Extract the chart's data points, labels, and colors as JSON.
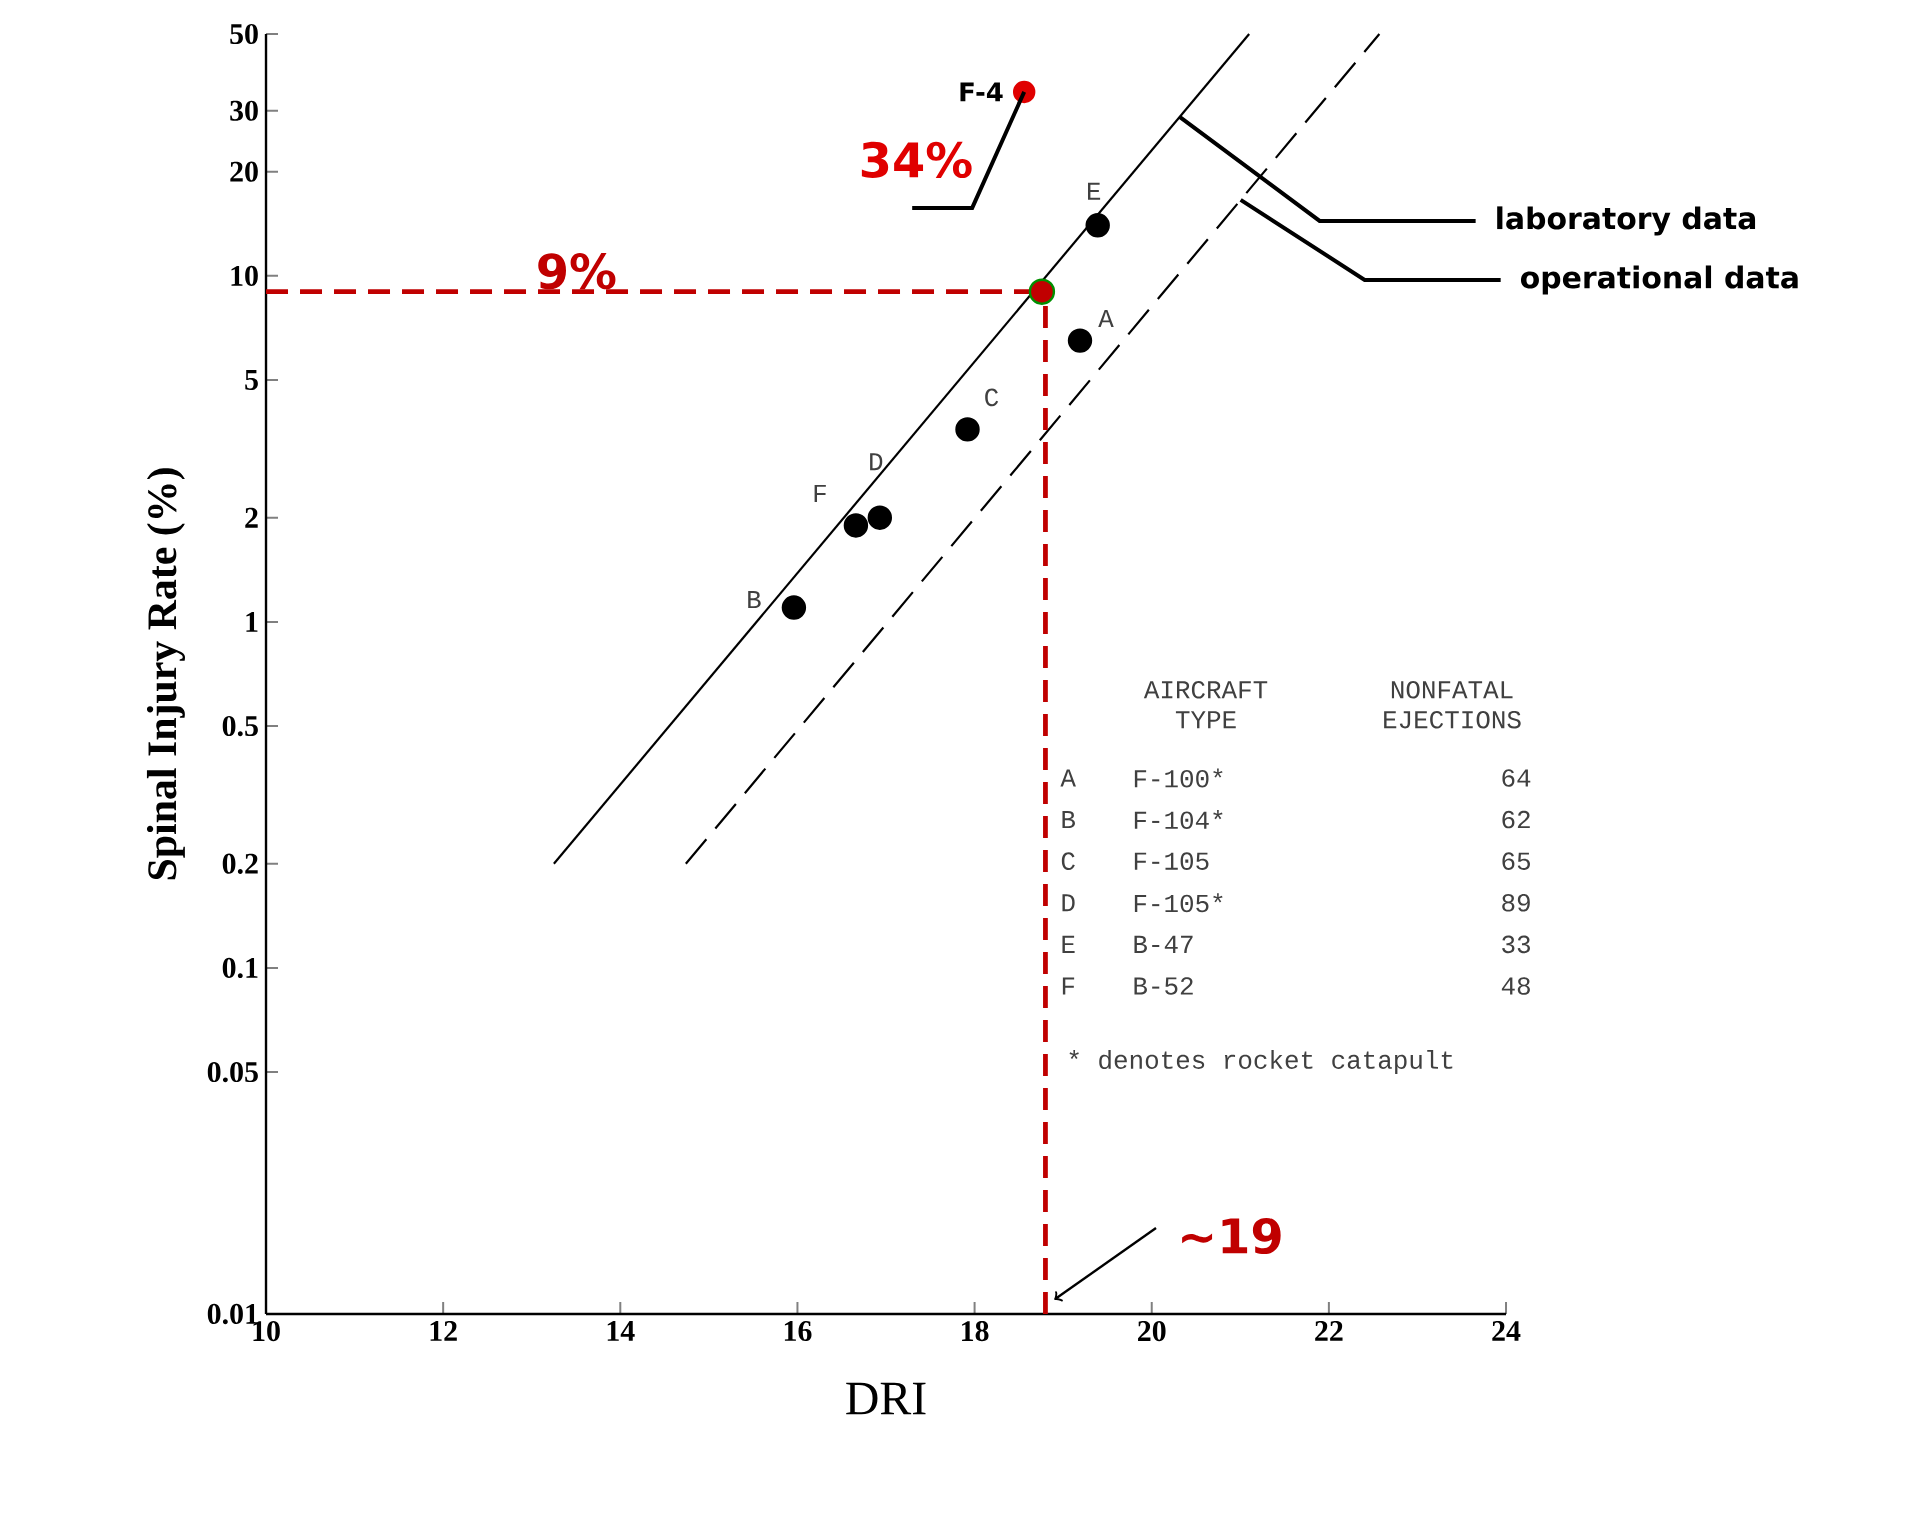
{
  "chart_data": {
    "type": "scatter",
    "xlabel": "DRI",
    "ylabel": "Spinal Injury Rate (%)",
    "xlim": [
      10,
      24
    ],
    "xticks": [
      10,
      12,
      14,
      16,
      18,
      20,
      22,
      24
    ],
    "ylim": [
      0.01,
      50
    ],
    "yticks": [
      0.01,
      0.05,
      0.1,
      0.2,
      0.5,
      1,
      2,
      5,
      10,
      20,
      30,
      50
    ],
    "grid": false,
    "log": true,
    "series": [
      {
        "name": "laboratory data",
        "type": "line",
        "line_style": "solid",
        "marker": "none",
        "color": "#000000",
        "x": [
          13.25,
          21.1
        ],
        "values": [
          0.2,
          50
        ]
      },
      {
        "name": "operational data",
        "type": "line",
        "line_style": "dashed",
        "marker": "none",
        "color": "#000000",
        "x": [
          14.74,
          22.57
        ],
        "values": [
          0.2,
          50
        ]
      },
      {
        "type": "scatter",
        "marker": "circle",
        "color": "#000000",
        "x": [
          15.96,
          16.66,
          16.93,
          17.92,
          19.19,
          19.39
        ],
        "values": [
          1.1,
          1.9,
          2.0,
          3.6,
          6.5,
          14
        ]
      },
      {
        "type": "scatter",
        "marker": "circle",
        "color": "#c00000",
        "x": [
          18.76
        ],
        "values": [
          9
        ]
      },
      {
        "name": "F-4",
        "type": "scatter",
        "marker": "circle",
        "color": "#e00000",
        "x": [
          18.56
        ],
        "values": [
          34
        ],
        "value_labels": [
          "34%"
        ]
      }
    ],
    "ref_lines": [
      {
        "axis": "y",
        "value": 9,
        "label": "9%",
        "color": "#c00000",
        "line_style": "dashed"
      },
      {
        "axis": "x",
        "value": 18.8,
        "label": "~19",
        "color": "#c00000",
        "line_style": "dashed"
      }
    ],
    "annotations": [
      "AIRCRAFT TYPE",
      "NONFATAL EJECTIONS",
      "A",
      "F-100*",
      "64",
      "B",
      "F-104*",
      "62",
      "C",
      "F-105",
      "65",
      "D",
      "F-105*",
      "89",
      "E",
      "B-47",
      "33",
      "F",
      "B-52",
      "48",
      "* denotes rocket catapult",
      {
        "text": "B",
        "x": 15.96,
        "y": 1.1
      },
      {
        "text": "F",
        "x": 16.66,
        "y": 1.9
      },
      {
        "text": "D",
        "x": 16.93,
        "y": 2.0
      },
      {
        "text": "C",
        "x": 17.92,
        "y": 3.6
      },
      {
        "text": "A",
        "x": 19.19,
        "y": 6.5
      },
      {
        "text": "E",
        "x": 19.39,
        "y": 14
      }
    ]
  }
}
